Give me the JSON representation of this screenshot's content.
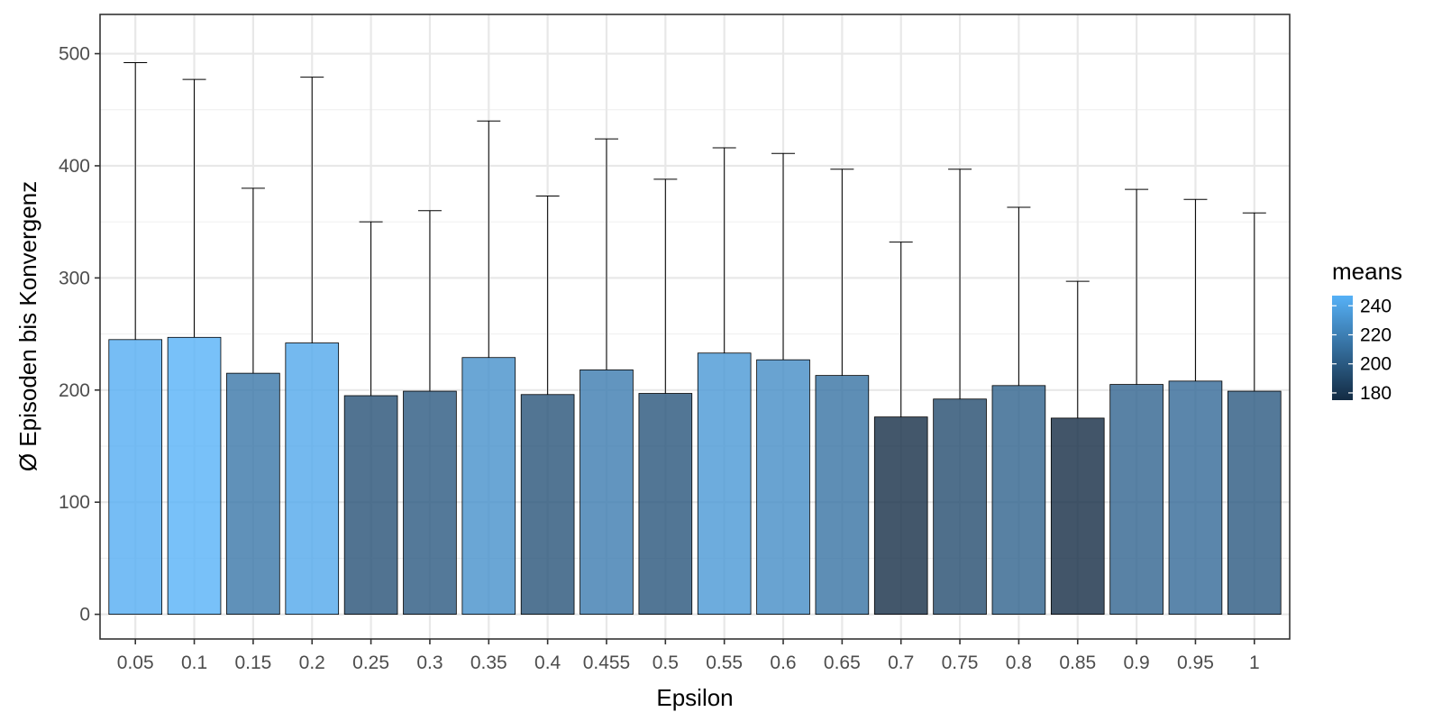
{
  "chart_data": {
    "type": "bar",
    "title": "",
    "xlabel": "Epsilon",
    "ylabel": "Ø Episoden bis Konvergenz",
    "categories": [
      "0.05",
      "0.1",
      "0.15",
      "0.2",
      "0.25",
      "0.3",
      "0.35",
      "0.4",
      "0.455",
      "0.5",
      "0.55",
      "0.6",
      "0.65",
      "0.7",
      "0.75",
      "0.8",
      "0.85",
      "0.9",
      "0.95",
      "1"
    ],
    "values": [
      245,
      247,
      215,
      242,
      195,
      199,
      229,
      196,
      218,
      197,
      233,
      227,
      213,
      176,
      192,
      204,
      175,
      205,
      208,
      199
    ],
    "error_upper": [
      492,
      477,
      380,
      479,
      350,
      360,
      440,
      373,
      424,
      388,
      416,
      411,
      397,
      332,
      397,
      363,
      297,
      379,
      370,
      358
    ],
    "ylim": [
      -22,
      535
    ],
    "y_ticks": [
      0,
      100,
      200,
      300,
      400,
      500
    ],
    "y_tick_labels": [
      "0",
      "100",
      "200",
      "300",
      "400",
      "500"
    ],
    "grid": true,
    "legend": {
      "title": "means",
      "position": "right",
      "ticks": [
        180,
        200,
        220,
        240
      ],
      "tick_labels": [
        "180",
        "200",
        "220",
        "240"
      ],
      "range": [
        175,
        247
      ],
      "color_low": "#132b43",
      "color_high": "#56b1f7"
    }
  }
}
